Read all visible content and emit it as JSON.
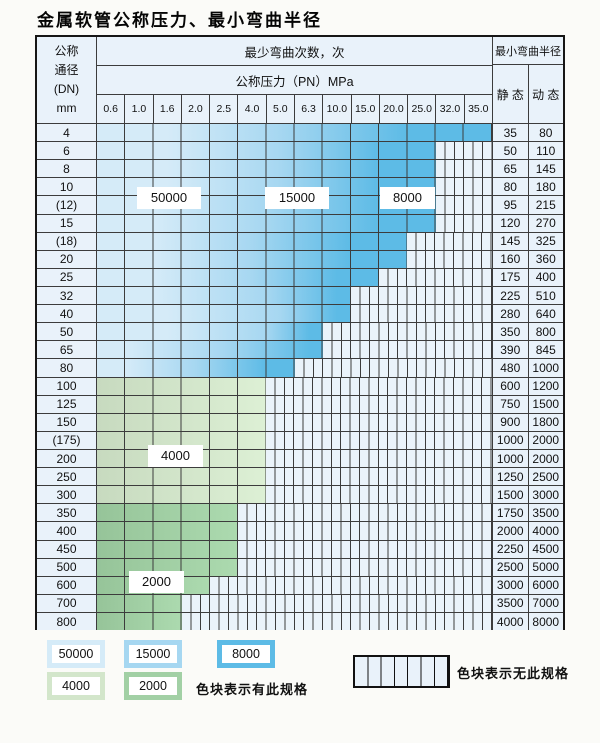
{
  "title": "金属软管公称压力、最小弯曲半径",
  "table": {
    "header": {
      "dn_label_lines": [
        "公称",
        "通径",
        "(DN)",
        "mm"
      ],
      "bend_cycles_label": "最少弯曲次数，次",
      "pressure_label": "公称压力（PN）MPa",
      "pressure_columns": [
        "0.6",
        "1.0",
        "1.6",
        "2.0",
        "2.5",
        "4.0",
        "5.0",
        "6.3",
        "10.0",
        "15.0",
        "20.0",
        "25.0",
        "32.0",
        "35.0"
      ],
      "radius_label": "最小弯曲半径",
      "static_label": "静 态",
      "dynamic_label": "动 态"
    },
    "rows": [
      {
        "dn": "4",
        "static": "35",
        "dynamic": "80",
        "bands": [
          [
            50000,
            0,
            4
          ],
          [
            15000,
            5,
            7
          ],
          [
            8000,
            8,
            13
          ]
        ]
      },
      {
        "dn": "6",
        "static": "50",
        "dynamic": "110",
        "bands": [
          [
            50000,
            0,
            4
          ],
          [
            15000,
            5,
            7
          ],
          [
            8000,
            8,
            11
          ]
        ]
      },
      {
        "dn": "8",
        "static": "65",
        "dynamic": "145",
        "bands": [
          [
            50000,
            0,
            4
          ],
          [
            15000,
            5,
            7
          ],
          [
            8000,
            8,
            11
          ]
        ]
      },
      {
        "dn": "10",
        "static": "80",
        "dynamic": "180",
        "bands": [
          [
            50000,
            0,
            4
          ],
          [
            15000,
            5,
            7
          ],
          [
            8000,
            8,
            11
          ]
        ]
      },
      {
        "dn": "(12)",
        "static": "95",
        "dynamic": "215",
        "bands": [
          [
            50000,
            0,
            3
          ],
          [
            15000,
            4,
            7
          ],
          [
            8000,
            8,
            11
          ]
        ]
      },
      {
        "dn": "15",
        "static": "120",
        "dynamic": "270",
        "bands": [
          [
            50000,
            0,
            3
          ],
          [
            15000,
            4,
            7
          ],
          [
            8000,
            8,
            11
          ]
        ]
      },
      {
        "dn": "(18)",
        "static": "145",
        "dynamic": "325",
        "bands": [
          [
            50000,
            0,
            3
          ],
          [
            15000,
            4,
            6
          ],
          [
            8000,
            7,
            10
          ]
        ]
      },
      {
        "dn": "20",
        "static": "160",
        "dynamic": "360",
        "bands": [
          [
            50000,
            0,
            3
          ],
          [
            15000,
            4,
            6
          ],
          [
            8000,
            7,
            10
          ]
        ]
      },
      {
        "dn": "25",
        "static": "175",
        "dynamic": "400",
        "bands": [
          [
            50000,
            0,
            3
          ],
          [
            15000,
            4,
            6
          ],
          [
            8000,
            7,
            9
          ]
        ]
      },
      {
        "dn": "32",
        "static": "225",
        "dynamic": "510",
        "bands": [
          [
            50000,
            0,
            3
          ],
          [
            15000,
            4,
            7
          ],
          [
            8000,
            8,
            8
          ]
        ]
      },
      {
        "dn": "40",
        "static": "280",
        "dynamic": "640",
        "bands": [
          [
            50000,
            0,
            4
          ],
          [
            15000,
            5,
            7
          ],
          [
            8000,
            8,
            8
          ]
        ]
      },
      {
        "dn": "50",
        "static": "350",
        "dynamic": "800",
        "bands": [
          [
            50000,
            0,
            4
          ],
          [
            15000,
            5,
            6
          ],
          [
            8000,
            7,
            7
          ]
        ]
      },
      {
        "dn": "65",
        "static": "390",
        "dynamic": "845",
        "bands": [
          [
            50000,
            0,
            1
          ],
          [
            15000,
            2,
            6
          ],
          [
            8000,
            7,
            7
          ]
        ]
      },
      {
        "dn": "80",
        "static": "480",
        "dynamic": "1000",
        "bands": [
          [
            50000,
            0,
            1
          ],
          [
            15000,
            2,
            4
          ],
          [
            8000,
            5,
            6
          ]
        ]
      },
      {
        "dn": "100",
        "static": "600",
        "dynamic": "1200",
        "bands": [
          [
            4000,
            0,
            5
          ]
        ]
      },
      {
        "dn": "125",
        "static": "750",
        "dynamic": "1500",
        "bands": [
          [
            4000,
            0,
            5
          ]
        ]
      },
      {
        "dn": "150",
        "static": "900",
        "dynamic": "1800",
        "bands": [
          [
            4000,
            0,
            5
          ]
        ]
      },
      {
        "dn": "(175)",
        "static": "1000",
        "dynamic": "2000",
        "bands": [
          [
            4000,
            0,
            5
          ]
        ]
      },
      {
        "dn": "200",
        "static": "1000",
        "dynamic": "2000",
        "bands": [
          [
            4000,
            0,
            5
          ]
        ]
      },
      {
        "dn": "250",
        "static": "1250",
        "dynamic": "2500",
        "bands": [
          [
            4000,
            0,
            5
          ]
        ]
      },
      {
        "dn": "300",
        "static": "1500",
        "dynamic": "3000",
        "bands": [
          [
            4000,
            0,
            5
          ]
        ]
      },
      {
        "dn": "350",
        "static": "1750",
        "dynamic": "3500",
        "bands": [
          [
            2000,
            0,
            4
          ]
        ]
      },
      {
        "dn": "400",
        "static": "2000",
        "dynamic": "4000",
        "bands": [
          [
            2000,
            0,
            4
          ]
        ]
      },
      {
        "dn": "450",
        "static": "2250",
        "dynamic": "4500",
        "bands": [
          [
            2000,
            0,
            4
          ]
        ]
      },
      {
        "dn": "500",
        "static": "2500",
        "dynamic": "5000",
        "bands": [
          [
            2000,
            0,
            4
          ]
        ]
      },
      {
        "dn": "600",
        "static": "3000",
        "dynamic": "6000",
        "bands": [
          [
            2000,
            0,
            3
          ]
        ]
      },
      {
        "dn": "700",
        "static": "3500",
        "dynamic": "7000",
        "bands": [
          [
            2000,
            0,
            2
          ]
        ]
      },
      {
        "dn": "800",
        "static": "4000",
        "dynamic": "8000",
        "bands": [
          [
            2000,
            0,
            2
          ]
        ]
      }
    ],
    "overlay_labels": [
      "50000",
      "15000",
      "8000",
      "4000",
      "2000"
    ]
  },
  "legend": {
    "blocks": [
      {
        "label": "50000",
        "cycle": "50000"
      },
      {
        "label": "15000",
        "cycle": "15000"
      },
      {
        "label": "8000",
        "cycle": "8000"
      },
      {
        "label": "4000",
        "cycle": "4000"
      },
      {
        "label": "2000",
        "cycle": "2000"
      }
    ],
    "has_spec_text": "色块表示有此规格",
    "no_spec_text": "色块表示无此规格"
  },
  "colors": {
    "cycle_colors": {
      "50000": "#d5ebf8",
      "15000": "#a6d7f1",
      "8000": "#5dbbe6",
      "4000": "#d3e6cb",
      "2000": "#a2d0a5"
    },
    "table_bg": "#e9f2fa",
    "grid_line": "#3c3c3c",
    "outer_border": "#161616",
    "label_bg": "#ffffff"
  }
}
